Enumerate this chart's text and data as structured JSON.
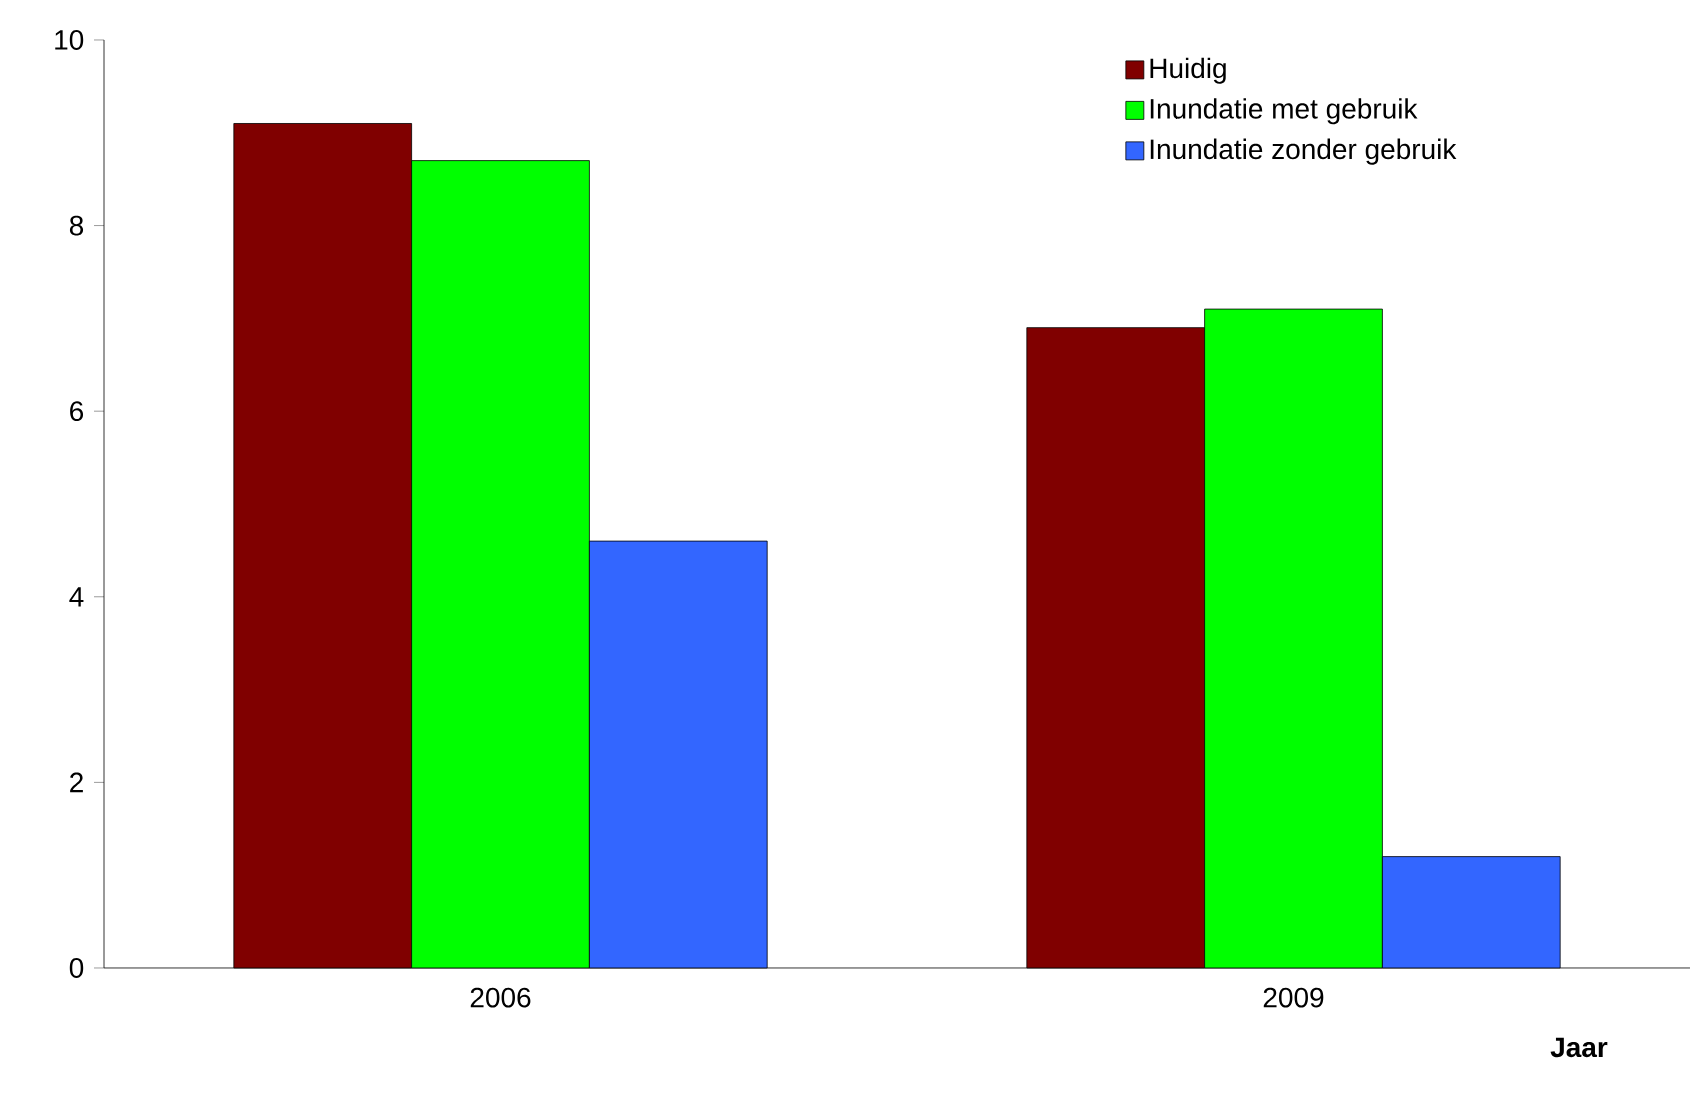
{
  "chart_data": {
    "type": "bar",
    "xlabel": "Jaar",
    "categories": [
      "2006",
      "2009"
    ],
    "series": [
      {
        "name": "Huidig",
        "color": "#800000",
        "values": [
          9.1,
          6.9
        ]
      },
      {
        "name": "Inundatie met gebruik",
        "color": "#00ff00",
        "values": [
          8.7,
          7.1
        ]
      },
      {
        "name": "Inundatie zonder gebruik",
        "color": "#3366ff",
        "values": [
          4.6,
          1.2
        ]
      }
    ],
    "ylim": [
      0,
      10
    ],
    "yticks": [
      0,
      2,
      4,
      6,
      8,
      10
    ],
    "legend": "top right"
  }
}
